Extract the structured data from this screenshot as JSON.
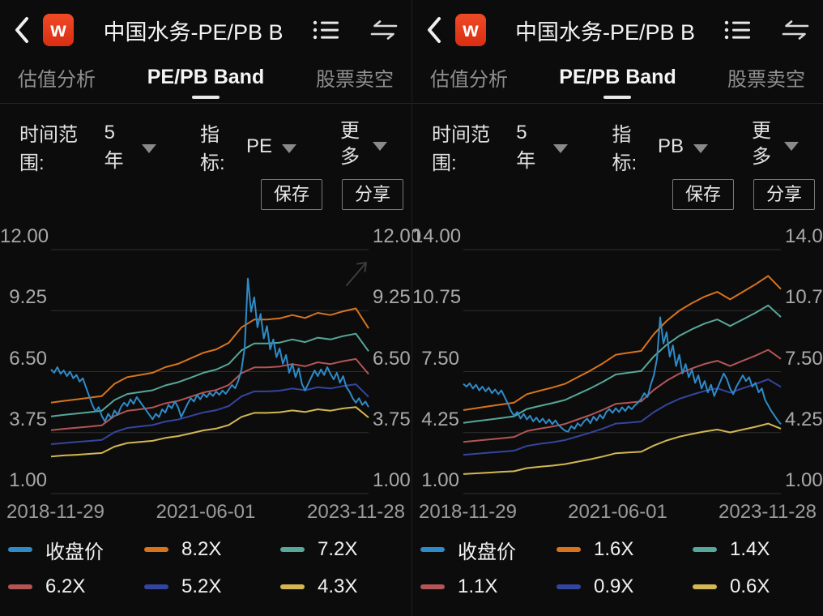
{
  "brand": {
    "logo_letter": "w",
    "logo_color": "#e73a1e"
  },
  "panels": [
    {
      "header": {
        "title": "中国水务-PE/PB B",
        "icons": [
          "back-chevron",
          "wind-logo",
          "list-menu",
          "swap-compare"
        ]
      },
      "tabs": [
        {
          "label": "估值分析",
          "active": false
        },
        {
          "label": "PE/PB Band",
          "active": true
        },
        {
          "label": "股票卖空",
          "active": false
        }
      ],
      "filters": {
        "time_range_label": "时间范围:",
        "time_range_value": "5年",
        "indicator_label": "指标:",
        "indicator_value": "PE",
        "more_label": "更多"
      },
      "buttons": {
        "save": "保存",
        "share": "分享"
      }
    },
    {
      "header": {
        "title": "中国水务-PE/PB B",
        "icons": [
          "back-chevron",
          "wind-logo",
          "list-menu",
          "swap-compare"
        ]
      },
      "tabs": [
        {
          "label": "估值分析",
          "active": false
        },
        {
          "label": "PE/PB Band",
          "active": true
        },
        {
          "label": "股票卖空",
          "active": false
        }
      ],
      "filters": {
        "time_range_label": "时间范围:",
        "time_range_value": "5年",
        "indicator_label": "指标:",
        "indicator_value": "PB",
        "more_label": "更多"
      },
      "buttons": {
        "save": "保存",
        "share": "分享"
      }
    }
  ],
  "chart_data": [
    {
      "type": "line",
      "indicator": "PE",
      "ylim": [
        1.0,
        12.0
      ],
      "yticks": [
        12.0,
        9.25,
        6.5,
        3.75,
        1.0
      ],
      "xticklabels": [
        "2018-11-29",
        "2021-06-01",
        "2023-11-28"
      ],
      "grid": true,
      "legend_position": "bottom",
      "expand_hint": true,
      "colors": {
        "grid": "#2f2f2f",
        "axis_label": "#a9a9a9"
      },
      "series": [
        {
          "name": "收盘价",
          "color": "#2e8bc8",
          "width": 2,
          "values": [
            6.6,
            6.45,
            6.7,
            6.4,
            6.55,
            6.3,
            6.5,
            6.2,
            6.35,
            6.05,
            6.2,
            5.8,
            5.4,
            5.0,
            4.7,
            4.9,
            4.5,
            4.25,
            4.6,
            4.4,
            4.75,
            4.55,
            4.9,
            5.1,
            4.95,
            5.25,
            5.05,
            5.35,
            5.15,
            4.95,
            4.75,
            4.55,
            4.35,
            4.6,
            4.45,
            4.8,
            4.65,
            5.0,
            4.85,
            5.15,
            4.9,
            4.45,
            4.75,
            5.05,
            5.3,
            5.15,
            5.45,
            5.25,
            5.5,
            5.35,
            5.55,
            5.4,
            5.6,
            5.45,
            5.65,
            5.5,
            5.7,
            5.9,
            5.75,
            6.1,
            6.6,
            7.6,
            10.7,
            9.2,
            9.85,
            8.5,
            9.1,
            8.0,
            8.55,
            7.5,
            7.95,
            7.15,
            7.55,
            6.85,
            7.25,
            6.45,
            6.85,
            6.25,
            6.65,
            5.95,
            5.65,
            5.95,
            6.25,
            6.55,
            6.3,
            6.6,
            6.35,
            6.7,
            6.4,
            6.15,
            6.45,
            6.0,
            6.3,
            5.8,
            5.6,
            5.3,
            5.1,
            5.3,
            5.0,
            5.15,
            4.9
          ]
        },
        {
          "name": "8.2X",
          "color": "#d8741c",
          "width": 2,
          "values": [
            5.1,
            5.18,
            5.25,
            5.32,
            5.4,
            5.95,
            6.25,
            6.35,
            6.45,
            6.7,
            6.85,
            7.1,
            7.35,
            7.5,
            7.8,
            8.5,
            8.85,
            8.85,
            8.9,
            9.05,
            8.92,
            9.15,
            9.05,
            9.22,
            9.35,
            8.45
          ]
        },
        {
          "name": "7.2X",
          "color": "#57a79a",
          "width": 2,
          "values": [
            4.48,
            4.55,
            4.61,
            4.67,
            4.74,
            5.22,
            5.49,
            5.58,
            5.66,
            5.88,
            6.02,
            6.23,
            6.45,
            6.59,
            6.85,
            7.46,
            7.77,
            7.77,
            7.81,
            7.95,
            7.83,
            8.03,
            7.95,
            8.1,
            8.21,
            7.42
          ]
        },
        {
          "name": "6.2X",
          "color": "#b35556",
          "width": 2,
          "values": [
            3.86,
            3.92,
            3.97,
            4.02,
            4.08,
            4.5,
            4.73,
            4.8,
            4.88,
            5.07,
            5.18,
            5.37,
            5.56,
            5.67,
            5.9,
            6.43,
            6.69,
            6.69,
            6.73,
            6.84,
            6.74,
            6.92,
            6.84,
            6.97,
            7.07,
            6.39
          ]
        },
        {
          "name": "5.2X",
          "color": "#34459e",
          "width": 2,
          "values": [
            3.23,
            3.28,
            3.33,
            3.37,
            3.42,
            3.77,
            3.96,
            4.03,
            4.09,
            4.25,
            4.34,
            4.5,
            4.66,
            4.76,
            4.95,
            5.39,
            5.61,
            5.61,
            5.64,
            5.74,
            5.66,
            5.8,
            5.74,
            5.85,
            5.93,
            5.36
          ]
        },
        {
          "name": "4.3X",
          "color": "#d3b752",
          "width": 2,
          "values": [
            2.67,
            2.72,
            2.75,
            2.79,
            2.83,
            3.12,
            3.28,
            3.33,
            3.38,
            3.51,
            3.59,
            3.72,
            3.85,
            3.93,
            4.09,
            4.46,
            4.64,
            4.64,
            4.67,
            4.75,
            4.68,
            4.8,
            4.74,
            4.84,
            4.9,
            4.43
          ]
        }
      ]
    },
    {
      "type": "line",
      "indicator": "PB",
      "ylim": [
        1.0,
        14.0
      ],
      "yticks": [
        14.0,
        10.75,
        7.5,
        4.25,
        1.0
      ],
      "xticklabels": [
        "2018-11-29",
        "2021-06-01",
        "2023-11-28"
      ],
      "grid": true,
      "legend_position": "bottom",
      "expand_hint": false,
      "colors": {
        "grid": "#2f2f2f",
        "axis_label": "#a9a9a9"
      },
      "series": [
        {
          "name": "收盘价",
          "color": "#2e8bc8",
          "width": 2,
          "values": [
            6.85,
            6.7,
            6.88,
            6.6,
            6.8,
            6.5,
            6.7,
            6.45,
            6.65,
            6.35,
            6.55,
            6.3,
            6.5,
            6.15,
            5.8,
            5.4,
            5.15,
            5.35,
            5.0,
            5.25,
            4.95,
            5.15,
            4.85,
            5.05,
            4.8,
            5.0,
            4.75,
            4.95,
            4.7,
            4.9,
            4.65,
            4.5,
            4.35,
            4.3,
            4.6,
            4.45,
            4.75,
            4.6,
            4.85,
            5.0,
            4.75,
            5.1,
            4.9,
            5.2,
            5.0,
            5.35,
            5.5,
            5.3,
            5.55,
            5.35,
            5.6,
            5.4,
            5.65,
            5.5,
            5.7,
            5.85,
            6.05,
            6.35,
            6.15,
            6.8,
            7.3,
            8.2,
            10.4,
            9.0,
            9.6,
            8.3,
            8.9,
            7.8,
            8.4,
            7.4,
            7.9,
            7.2,
            7.6,
            6.9,
            7.3,
            6.6,
            7.0,
            6.4,
            6.8,
            6.2,
            6.6,
            7.0,
            7.4,
            7.1,
            6.6,
            6.3,
            6.7,
            7.0,
            7.3,
            7.0,
            7.2,
            6.7,
            6.9,
            6.4,
            6.6,
            6.0,
            5.7,
            5.4,
            5.15,
            4.9,
            4.7
          ]
        },
        {
          "name": "1.6X",
          "color": "#d8741c",
          "width": 2,
          "values": [
            5.45,
            5.55,
            5.65,
            5.75,
            5.85,
            6.3,
            6.48,
            6.65,
            6.85,
            7.2,
            7.55,
            7.95,
            8.4,
            8.5,
            8.6,
            9.5,
            10.2,
            10.75,
            11.15,
            11.5,
            11.75,
            11.35,
            11.75,
            12.15,
            12.6,
            11.9
          ]
        },
        {
          "name": "1.4X",
          "color": "#57a79a",
          "width": 2,
          "values": [
            4.77,
            4.86,
            4.94,
            5.03,
            5.12,
            5.51,
            5.67,
            5.82,
            5.99,
            6.3,
            6.61,
            6.96,
            7.35,
            7.44,
            7.53,
            8.31,
            8.93,
            9.41,
            9.76,
            10.06,
            10.28,
            9.93,
            10.28,
            10.63,
            11.03,
            10.41
          ]
        },
        {
          "name": "1.1X",
          "color": "#b35556",
          "width": 2,
          "values": [
            3.75,
            3.82,
            3.88,
            3.95,
            4.02,
            4.33,
            4.46,
            4.57,
            4.71,
            4.95,
            5.19,
            5.47,
            5.78,
            5.84,
            5.91,
            6.53,
            7.01,
            7.39,
            7.67,
            7.91,
            8.08,
            7.8,
            8.08,
            8.35,
            8.66,
            8.18
          ]
        },
        {
          "name": "0.9X",
          "color": "#34459e",
          "width": 2,
          "values": [
            3.07,
            3.12,
            3.18,
            3.23,
            3.29,
            3.54,
            3.65,
            3.74,
            3.85,
            4.05,
            4.25,
            4.47,
            4.73,
            4.78,
            4.84,
            5.34,
            5.74,
            6.05,
            6.27,
            6.47,
            6.61,
            6.38,
            6.61,
            6.84,
            7.09,
            6.69
          ]
        },
        {
          "name": "0.6X",
          "color": "#d3b752",
          "width": 2,
          "values": [
            2.04,
            2.08,
            2.12,
            2.16,
            2.19,
            2.36,
            2.43,
            2.49,
            2.57,
            2.7,
            2.83,
            2.98,
            3.15,
            3.19,
            3.23,
            3.56,
            3.83,
            4.03,
            4.18,
            4.31,
            4.41,
            4.26,
            4.41,
            4.56,
            4.73,
            4.46
          ]
        }
      ]
    }
  ]
}
